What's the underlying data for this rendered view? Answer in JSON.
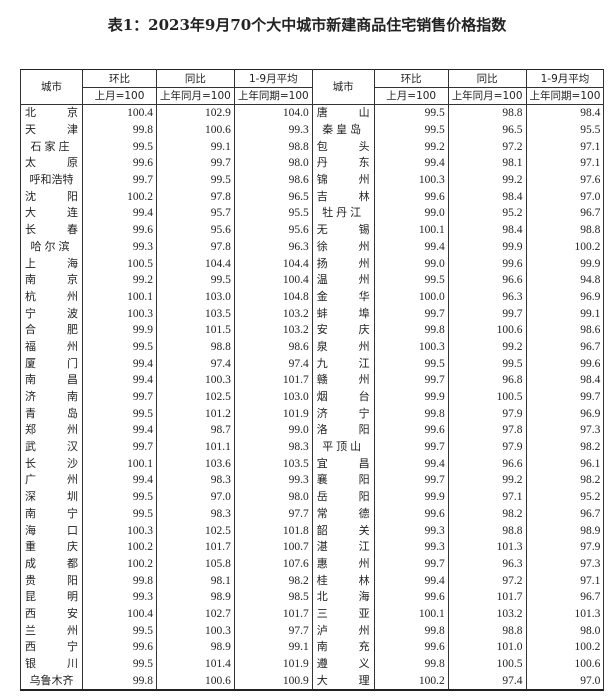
{
  "title": "表1：2023年9月70个大中城市新建商品住宅销售价格指数",
  "headers": {
    "city": "城市",
    "hb": "环比",
    "tb": "同比",
    "avg": "1-9月平均",
    "hb_base": "上月=100",
    "tb_base": "上年同月=100",
    "avg_base": "上年同期=100"
  },
  "left": [
    [
      "北京",
      "100.4",
      "102.9",
      "104.0"
    ],
    [
      "天津",
      "99.8",
      "100.6",
      "99.3"
    ],
    [
      "石家庄",
      "99.5",
      "99.1",
      "98.8"
    ],
    [
      "太原",
      "99.6",
      "99.7",
      "98.0"
    ],
    [
      "呼和浩特",
      "99.7",
      "99.5",
      "98.6"
    ],
    [
      "沈阳",
      "100.2",
      "97.8",
      "96.5"
    ],
    [
      "大连",
      "99.4",
      "95.7",
      "95.5"
    ],
    [
      "长春",
      "99.6",
      "95.6",
      "95.6"
    ],
    [
      "哈尔滨",
      "99.3",
      "97.8",
      "96.3"
    ],
    [
      "上海",
      "100.5",
      "104.4",
      "104.4"
    ],
    [
      "南京",
      "99.2",
      "99.5",
      "100.4"
    ],
    [
      "杭州",
      "100.1",
      "103.0",
      "104.8"
    ],
    [
      "宁波",
      "100.3",
      "103.5",
      "103.2"
    ],
    [
      "合肥",
      "99.9",
      "101.5",
      "103.2"
    ],
    [
      "福州",
      "99.5",
      "98.8",
      "98.6"
    ],
    [
      "厦门",
      "99.4",
      "97.4",
      "97.4"
    ],
    [
      "南昌",
      "99.4",
      "100.3",
      "101.7"
    ],
    [
      "济南",
      "99.7",
      "102.5",
      "103.0"
    ],
    [
      "青岛",
      "99.5",
      "101.2",
      "101.9"
    ],
    [
      "郑州",
      "99.4",
      "98.7",
      "99.0"
    ],
    [
      "武汉",
      "99.7",
      "101.1",
      "98.3"
    ],
    [
      "长沙",
      "100.1",
      "103.6",
      "103.5"
    ],
    [
      "广州",
      "99.4",
      "98.3",
      "99.3"
    ],
    [
      "深圳",
      "99.5",
      "97.0",
      "98.0"
    ],
    [
      "南宁",
      "99.5",
      "98.3",
      "97.7"
    ],
    [
      "海口",
      "100.3",
      "102.5",
      "101.8"
    ],
    [
      "重庆",
      "100.2",
      "101.7",
      "100.7"
    ],
    [
      "成都",
      "100.2",
      "105.8",
      "107.6"
    ],
    [
      "贵阳",
      "99.8",
      "98.1",
      "98.2"
    ],
    [
      "昆明",
      "99.3",
      "98.9",
      "98.5"
    ],
    [
      "西安",
      "100.4",
      "102.7",
      "101.7"
    ],
    [
      "兰州",
      "99.5",
      "100.3",
      "97.7"
    ],
    [
      "西宁",
      "99.6",
      "98.9",
      "99.1"
    ],
    [
      "银川",
      "99.5",
      "101.4",
      "101.9"
    ],
    [
      "乌鲁木齐",
      "99.8",
      "100.6",
      "100.9"
    ]
  ],
  "right": [
    [
      "唐山",
      "99.5",
      "98.8",
      "98.4"
    ],
    [
      "秦皇岛",
      "99.5",
      "96.5",
      "95.5"
    ],
    [
      "包头",
      "99.2",
      "97.2",
      "97.1"
    ],
    [
      "丹东",
      "99.4",
      "98.1",
      "97.1"
    ],
    [
      "锦州",
      "100.3",
      "99.2",
      "97.6"
    ],
    [
      "吉林",
      "99.6",
      "98.4",
      "97.0"
    ],
    [
      "牡丹江",
      "99.0",
      "95.2",
      "96.7"
    ],
    [
      "无锡",
      "100.1",
      "98.4",
      "98.8"
    ],
    [
      "徐州",
      "99.4",
      "99.9",
      "100.2"
    ],
    [
      "扬州",
      "99.0",
      "99.6",
      "99.9"
    ],
    [
      "温州",
      "99.5",
      "96.6",
      "94.8"
    ],
    [
      "金华",
      "100.0",
      "96.3",
      "96.9"
    ],
    [
      "蚌埠",
      "99.7",
      "99.7",
      "99.1"
    ],
    [
      "安庆",
      "99.8",
      "100.6",
      "98.6"
    ],
    [
      "泉州",
      "100.3",
      "99.2",
      "96.7"
    ],
    [
      "九江",
      "99.5",
      "99.5",
      "99.6"
    ],
    [
      "赣州",
      "99.7",
      "96.8",
      "98.4"
    ],
    [
      "烟台",
      "99.9",
      "100.5",
      "99.7"
    ],
    [
      "济宁",
      "99.8",
      "97.9",
      "96.9"
    ],
    [
      "洛阳",
      "99.6",
      "97.8",
      "97.3"
    ],
    [
      "平顶山",
      "99.7",
      "97.9",
      "98.2"
    ],
    [
      "宜昌",
      "99.4",
      "96.6",
      "96.1"
    ],
    [
      "襄阳",
      "99.7",
      "99.2",
      "98.2"
    ],
    [
      "岳阳",
      "99.9",
      "97.1",
      "95.2"
    ],
    [
      "常德",
      "99.6",
      "98.2",
      "96.7"
    ],
    [
      "韶关",
      "99.3",
      "98.8",
      "98.9"
    ],
    [
      "湛江",
      "99.3",
      "101.3",
      "97.9"
    ],
    [
      "惠州",
      "99.7",
      "96.3",
      "97.3"
    ],
    [
      "桂林",
      "99.4",
      "97.2",
      "97.1"
    ],
    [
      "北海",
      "99.6",
      "101.7",
      "96.7"
    ],
    [
      "三亚",
      "100.1",
      "103.2",
      "101.3"
    ],
    [
      "泸州",
      "99.8",
      "98.8",
      "98.0"
    ],
    [
      "南充",
      "99.6",
      "101.0",
      "100.2"
    ],
    [
      "遵义",
      "99.8",
      "100.5",
      "100.6"
    ],
    [
      "大理",
      "100.2",
      "97.4",
      "97.0"
    ]
  ]
}
